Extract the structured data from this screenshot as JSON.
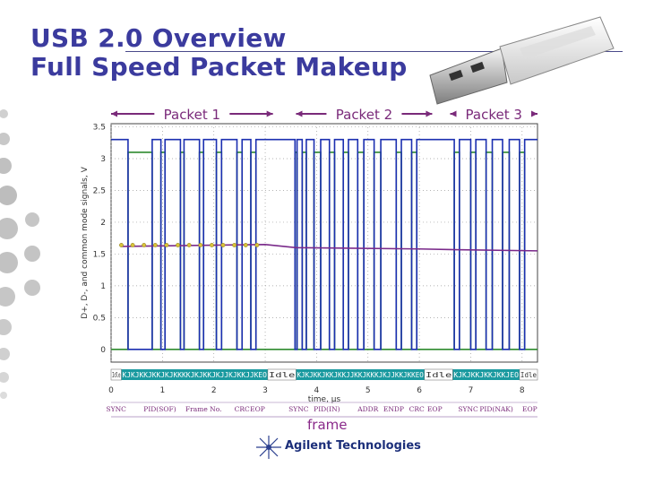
{
  "slide": {
    "title_line1": "USB 2.0 Overview",
    "title_line2": "Full Speed Packet Makeup",
    "frame_label": "frame",
    "brand": "Agilent Technologies"
  },
  "colors": {
    "title": "#3b3b9e",
    "packet_arrow": "#7a2a7a",
    "dplus": "#2e8a2e",
    "dminus": "#1b2fb0",
    "common_mode": "#7a2a8a",
    "decode_bar": "#1a9aa0"
  },
  "chart_data": {
    "type": "line",
    "title": "",
    "xlabel": "time, µs",
    "ylabel": "D+, D-, and common mode signals, V",
    "xlim": [
      0,
      8.3
    ],
    "ylim": [
      -0.2,
      3.55
    ],
    "x_ticks": [
      "0",
      "1",
      "2",
      "3",
      "4",
      "5",
      "6",
      "7",
      "8"
    ],
    "y_ticks": [
      "0",
      "0.5",
      "1",
      "1.5",
      "2",
      "2.5",
      "3",
      "3.5"
    ],
    "grid": true,
    "packets": [
      {
        "label": "Packet 1",
        "start": 0,
        "end": 3.15
      },
      {
        "label": "Packet 2",
        "start": 3.6,
        "end": 6.25
      },
      {
        "label": "Packet 3",
        "start": 6.6,
        "end": 8.3
      }
    ],
    "series": [
      {
        "name": "D+",
        "color": "#2e8a2e",
        "steps": [
          [
            0,
            0
          ],
          [
            0.33,
            3.1
          ],
          [
            0.8,
            0
          ],
          [
            0.97,
            3.1
          ],
          [
            1.05,
            0
          ],
          [
            1.35,
            3.1
          ],
          [
            1.42,
            0
          ],
          [
            1.72,
            3.1
          ],
          [
            1.8,
            0
          ],
          [
            2.05,
            3.1
          ],
          [
            2.15,
            0
          ],
          [
            2.45,
            3.1
          ],
          [
            2.55,
            0
          ],
          [
            2.72,
            3.1
          ],
          [
            2.82,
            0
          ],
          [
            3.03,
            0
          ],
          [
            3.58,
            3.1
          ],
          [
            3.62,
            0
          ],
          [
            3.72,
            3.1
          ],
          [
            3.8,
            0
          ],
          [
            3.95,
            3.1
          ],
          [
            4.08,
            0
          ],
          [
            4.25,
            3.1
          ],
          [
            4.35,
            0
          ],
          [
            4.52,
            3.1
          ],
          [
            4.62,
            0
          ],
          [
            4.8,
            3.1
          ],
          [
            4.92,
            0
          ],
          [
            5.12,
            3.1
          ],
          [
            5.25,
            0
          ],
          [
            5.55,
            3.1
          ],
          [
            5.65,
            0
          ],
          [
            5.85,
            3.1
          ],
          [
            5.95,
            0
          ],
          [
            6.05,
            0
          ],
          [
            6.68,
            3.1
          ],
          [
            6.78,
            0
          ],
          [
            7.0,
            3.1
          ],
          [
            7.1,
            0
          ],
          [
            7.3,
            3.1
          ],
          [
            7.42,
            0
          ],
          [
            7.62,
            3.1
          ],
          [
            7.75,
            0
          ],
          [
            7.95,
            3.1
          ],
          [
            8.05,
            0
          ],
          [
            8.3,
            0
          ]
        ]
      },
      {
        "name": "D-",
        "color": "#1b2fb0",
        "steps": [
          [
            0,
            3.3
          ],
          [
            0.33,
            0
          ],
          [
            0.8,
            3.3
          ],
          [
            0.97,
            0
          ],
          [
            1.05,
            3.3
          ],
          [
            1.35,
            0
          ],
          [
            1.42,
            3.3
          ],
          [
            1.72,
            0
          ],
          [
            1.8,
            3.3
          ],
          [
            2.05,
            0
          ],
          [
            2.15,
            3.3
          ],
          [
            2.45,
            0
          ],
          [
            2.55,
            3.3
          ],
          [
            2.72,
            0
          ],
          [
            2.82,
            3.3
          ],
          [
            3.03,
            3.3
          ],
          [
            3.58,
            0
          ],
          [
            3.62,
            3.3
          ],
          [
            3.72,
            0
          ],
          [
            3.8,
            3.3
          ],
          [
            3.95,
            0
          ],
          [
            4.08,
            3.3
          ],
          [
            4.25,
            0
          ],
          [
            4.35,
            3.3
          ],
          [
            4.52,
            0
          ],
          [
            4.62,
            3.3
          ],
          [
            4.8,
            0
          ],
          [
            4.92,
            3.3
          ],
          [
            5.12,
            0
          ],
          [
            5.25,
            3.3
          ],
          [
            5.55,
            0
          ],
          [
            5.65,
            3.3
          ],
          [
            5.85,
            0
          ],
          [
            5.95,
            3.3
          ],
          [
            6.05,
            3.3
          ],
          [
            6.68,
            0
          ],
          [
            6.78,
            3.3
          ],
          [
            7.0,
            0
          ],
          [
            7.1,
            3.3
          ],
          [
            7.3,
            0
          ],
          [
            7.42,
            3.3
          ],
          [
            7.62,
            0
          ],
          [
            7.75,
            3.3
          ],
          [
            7.95,
            0
          ],
          [
            8.05,
            3.3
          ],
          [
            8.3,
            3.3
          ]
        ]
      },
      {
        "name": "common mode",
        "color": "#7a2a8a",
        "points": [
          [
            0.2,
            1.62
          ],
          [
            3.0,
            1.65
          ],
          [
            3.6,
            1.6
          ],
          [
            6.0,
            1.58
          ],
          [
            6.6,
            1.57
          ],
          [
            8.3,
            1.55
          ]
        ]
      }
    ],
    "decode_bar": [
      {
        "x": 0.0,
        "text": "Idle"
      },
      {
        "x": 0.2,
        "text": "KJKJKKJKKJKJKKKKJKJKKJKJJKJKKJJKEO"
      },
      {
        "x": 3.05,
        "text": "Idle"
      },
      {
        "x": 3.6,
        "text": "KJKJKKJKKJKKJJKKJKKKJKJJKKJKKEO"
      },
      {
        "x": 6.1,
        "text": "Idle"
      },
      {
        "x": 6.65,
        "text": "KJKJKKJKKJKKJEO"
      },
      {
        "x": 7.95,
        "text": "Idle"
      }
    ],
    "field_labels": [
      {
        "x": 0.1,
        "text": "SYNC"
      },
      {
        "x": 0.95,
        "text": "PID(SOF)"
      },
      {
        "x": 1.8,
        "text": "Frame No."
      },
      {
        "x": 2.55,
        "text": "CRC"
      },
      {
        "x": 2.85,
        "text": "EOP"
      },
      {
        "x": 3.65,
        "text": "SYNC"
      },
      {
        "x": 4.2,
        "text": "PID(IN)"
      },
      {
        "x": 5.0,
        "text": "ADDR"
      },
      {
        "x": 5.5,
        "text": "ENDP"
      },
      {
        "x": 5.95,
        "text": "CRC"
      },
      {
        "x": 6.3,
        "text": "EOP"
      },
      {
        "x": 6.95,
        "text": "SYNC"
      },
      {
        "x": 7.5,
        "text": "PID(NAK)"
      },
      {
        "x": 8.15,
        "text": "EOP"
      }
    ]
  }
}
